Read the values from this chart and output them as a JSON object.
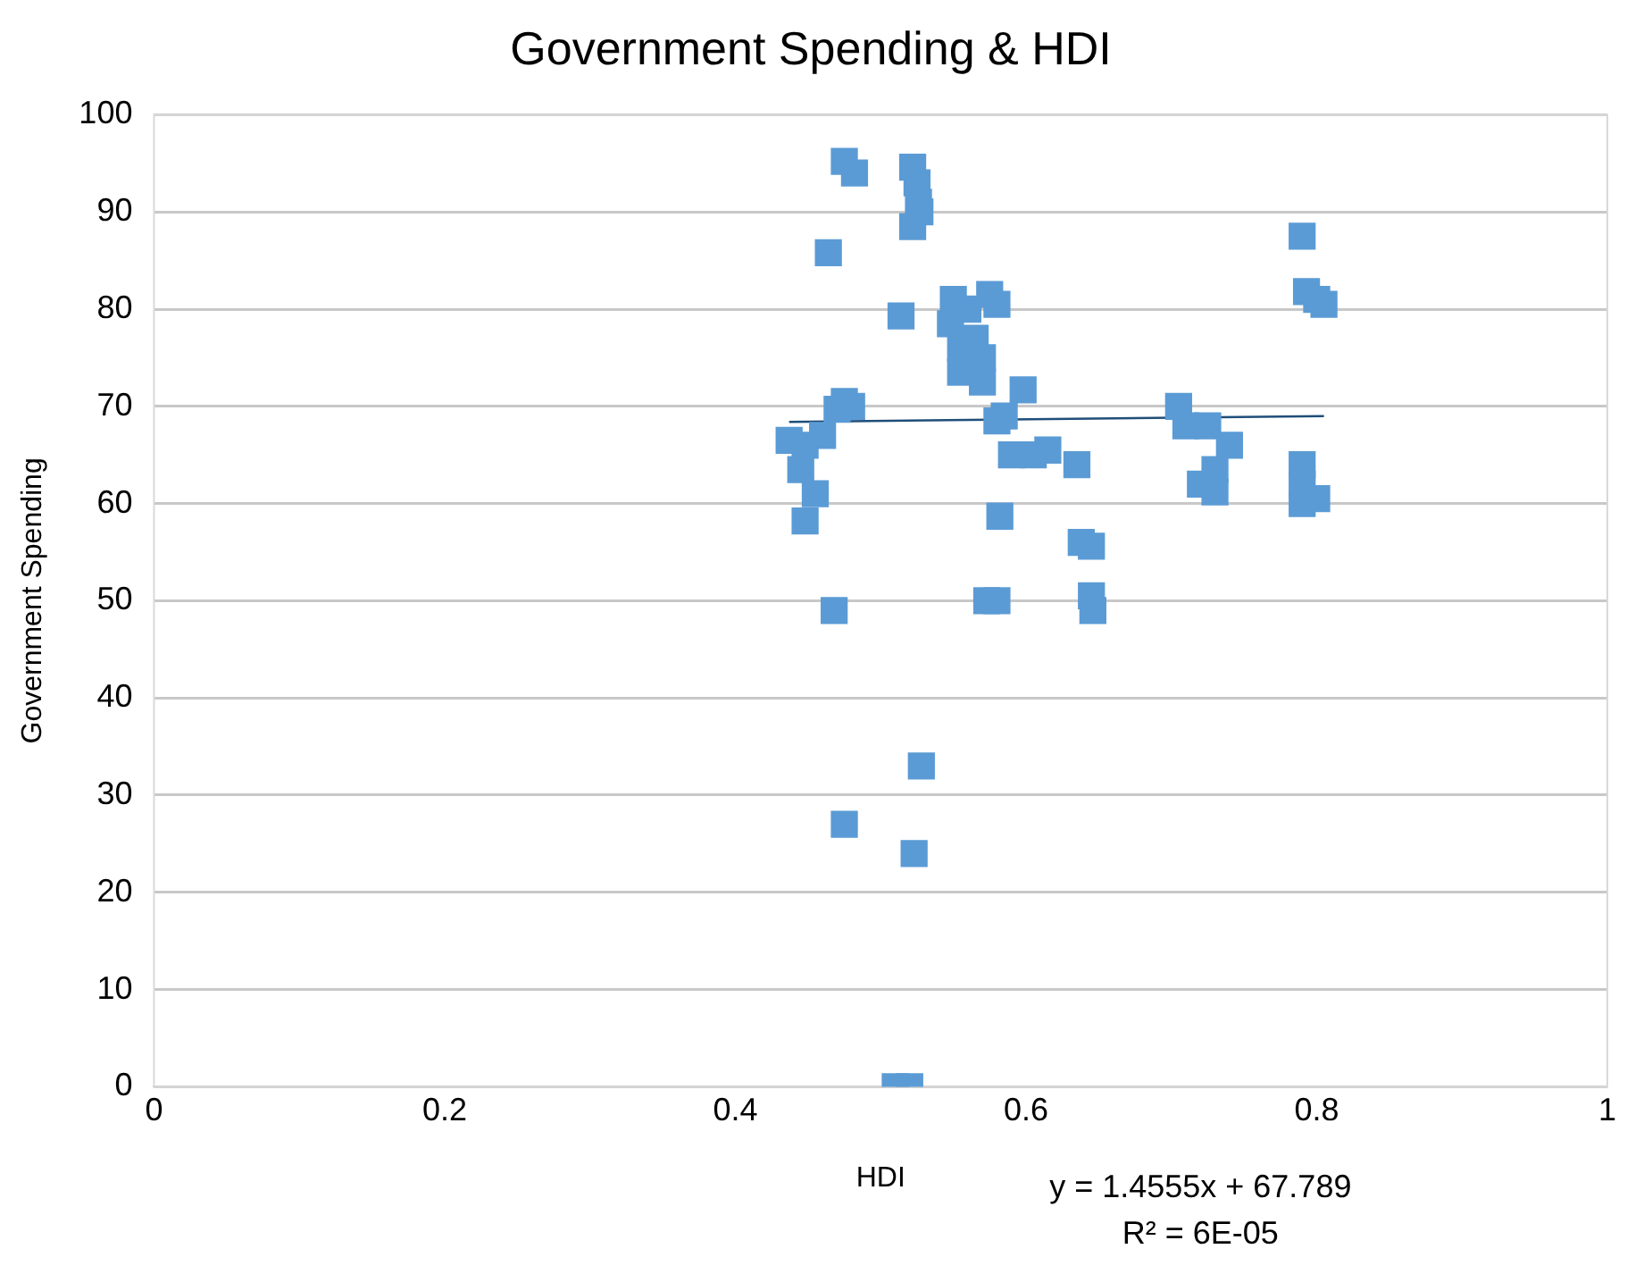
{
  "chart_data": {
    "type": "scatter",
    "title": "Government Spending & HDI",
    "xlabel": "HDI",
    "ylabel": "Government Spending",
    "xlim": [
      0,
      1
    ],
    "xticks": [
      0,
      0.2,
      0.4,
      0.6,
      0.8,
      1
    ],
    "ylim": [
      0,
      100
    ],
    "yticks": [
      0,
      10,
      20,
      30,
      40,
      50,
      60,
      70,
      80,
      90,
      100
    ],
    "grid": "y",
    "legend": false,
    "marker": "square",
    "annotations": [
      "y = 1.4555x + 67.789",
      "R² = 6E-05"
    ],
    "series": [
      {
        "type": "scatter",
        "color": "#5b9bd5",
        "x": [
          0.475,
          0.482,
          0.522,
          0.525,
          0.526,
          0.527,
          0.522,
          0.464,
          0.514,
          0.55,
          0.56,
          0.575,
          0.58,
          0.548,
          0.555,
          0.565,
          0.57,
          0.555,
          0.57,
          0.598,
          0.585,
          0.58,
          0.59,
          0.605,
          0.615,
          0.475,
          0.48,
          0.47,
          0.437,
          0.448,
          0.46,
          0.445,
          0.455,
          0.448,
          0.468,
          0.475,
          0.523,
          0.528,
          0.51,
          0.52,
          0.582,
          0.573,
          0.58,
          0.635,
          0.638,
          0.645,
          0.645,
          0.646,
          0.705,
          0.71,
          0.725,
          0.74,
          0.72,
          0.73,
          0.73,
          0.79,
          0.793,
          0.8,
          0.805,
          0.79,
          0.79,
          0.79,
          0.8
        ],
        "values": [
          95.2,
          94,
          94.6,
          93,
          91,
          90,
          88.5,
          85.8,
          79.3,
          81,
          80,
          81.5,
          80.5,
          78.5,
          76,
          77,
          75,
          73.5,
          72.5,
          71.7,
          69,
          68.5,
          65,
          65,
          65.5,
          70.5,
          70,
          69.7,
          66.5,
          66,
          67,
          63.5,
          61,
          58.2,
          49,
          27,
          24,
          33,
          0,
          0,
          58.7,
          50,
          50,
          64,
          56,
          55.6,
          50.5,
          49,
          70,
          68,
          68,
          66,
          62,
          61.2,
          63.5,
          87.5,
          81.8,
          81,
          80.5,
          64,
          62,
          60,
          60.5
        ]
      },
      {
        "type": "line",
        "color": "#1f4e79",
        "marker": "none",
        "x": [
          0.437,
          0.805
        ],
        "values": [
          68.4,
          69.0
        ]
      }
    ]
  }
}
